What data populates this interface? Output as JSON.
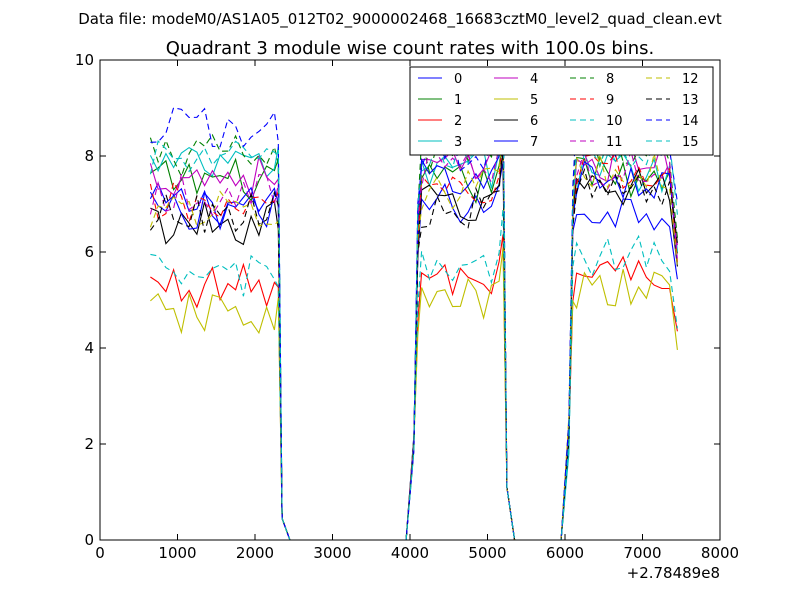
{
  "chart_data": {
    "type": "line",
    "suptitle": "Data file: modeM0/AS1A05_012T02_9000002468_16683cztM0_level2_quad_clean.evt",
    "title": "Quadrant 3 module wise count rates with 100.0s bins.",
    "xlabel": "",
    "ylabel": "",
    "x_offset_label": "+2.78489e8",
    "xlim": [
      0,
      8000
    ],
    "ylim": [
      0,
      10
    ],
    "xticks": [
      0,
      1000,
      2000,
      3000,
      4000,
      5000,
      6000,
      7000,
      8000
    ],
    "xtick_labels": [
      "0",
      "1000",
      "2000",
      "3000",
      "4000",
      "5000",
      "6000",
      "7000",
      "8000"
    ],
    "yticks": [
      0,
      2,
      4,
      6,
      8,
      10
    ],
    "ytick_labels": [
      "0",
      "2",
      "4",
      "6",
      "8",
      "10"
    ],
    "grid": false,
    "legend_position": "top-right",
    "legend_columns": 4,
    "bin_width": 100,
    "segments": [
      {
        "start": 650,
        "end": 2250,
        "samples": 17
      },
      {
        "start": 2250,
        "end": 2450,
        "samples": 3
      },
      {
        "start": 4050,
        "end": 5250,
        "samples": 13
      },
      {
        "start": 5250,
        "end": 5350,
        "samples": 2
      },
      {
        "start": 6050,
        "end": 7450,
        "samples": 15
      }
    ],
    "series": [
      {
        "name": "0",
        "color": "#0000ff",
        "dash": "solid",
        "levels": [
          7.0,
          7.0,
          6.9
        ]
      },
      {
        "name": "1",
        "color": "#008000",
        "dash": "solid",
        "levels": [
          7.5,
          7.4,
          7.6
        ]
      },
      {
        "name": "2",
        "color": "#ff0000",
        "dash": "solid",
        "levels": [
          5.3,
          5.4,
          5.6
        ]
      },
      {
        "name": "3",
        "color": "#00bfbf",
        "dash": "solid",
        "levels": [
          7.8,
          7.7,
          7.7
        ]
      },
      {
        "name": "4",
        "color": "#bf00bf",
        "dash": "solid",
        "levels": [
          7.6,
          7.7,
          7.9
        ]
      },
      {
        "name": "5",
        "color": "#bfbf00",
        "dash": "solid",
        "levels": [
          4.7,
          5.0,
          5.2
        ]
      },
      {
        "name": "6",
        "color": "#000000",
        "dash": "solid",
        "levels": [
          6.6,
          7.0,
          7.4
        ]
      },
      {
        "name": "7",
        "color": "#0000ff",
        "dash": "solid",
        "levels": [
          6.9,
          7.6,
          7.5
        ]
      },
      {
        "name": "8",
        "color": "#008000",
        "dash": "dashed",
        "levels": [
          8.0,
          8.0,
          8.2
        ]
      },
      {
        "name": "9",
        "color": "#ff0000",
        "dash": "dashed",
        "levels": [
          7.0,
          7.2,
          7.6
        ]
      },
      {
        "name": "10",
        "color": "#00bfbf",
        "dash": "dashed",
        "levels": [
          5.5,
          5.6,
          5.9
        ]
      },
      {
        "name": "11",
        "color": "#bf00bf",
        "dash": "dashed",
        "levels": [
          7.2,
          7.8,
          7.7
        ]
      },
      {
        "name": "12",
        "color": "#bfbf00",
        "dash": "dashed",
        "levels": [
          6.9,
          7.3,
          7.6
        ]
      },
      {
        "name": "13",
        "color": "#000000",
        "dash": "dashed",
        "levels": [
          6.8,
          6.9,
          7.3
        ]
      },
      {
        "name": "14",
        "color": "#0000ff",
        "dash": "dashed",
        "levels": [
          8.6,
          8.1,
          8.4
        ]
      },
      {
        "name": "15",
        "color": "#00bfbf",
        "dash": "dashed",
        "levels": [
          7.9,
          8.0,
          8.1
        ]
      }
    ]
  }
}
